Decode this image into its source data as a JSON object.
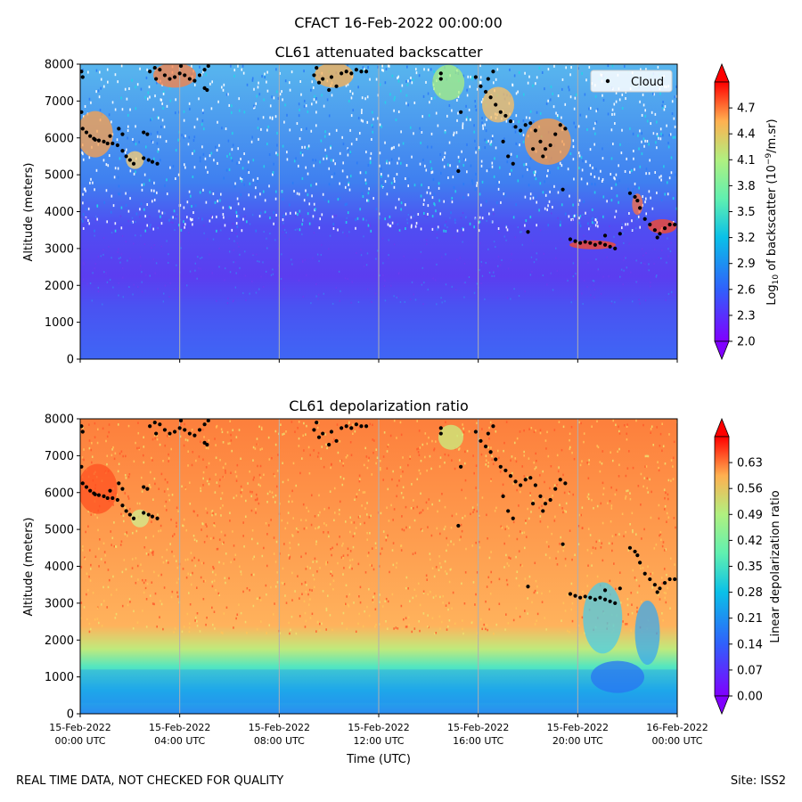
{
  "figure_title": "CFACT 16-Feb-2022 00:00:00",
  "footer": {
    "quality_note": "REAL TIME DATA, NOT CHECKED FOR QUALITY",
    "site": "Site: ISS2"
  },
  "chart_data": [
    {
      "type": "heatmap",
      "title": "CL61 attenuated backscatter",
      "xlabel": "Time (UTC)",
      "ylabel": "Altitude (meters)",
      "x_start": "2022-02-15 00:00 UTC",
      "x_end": "2022-02-16 00:00 UTC",
      "x_tick_labels": [
        [
          "15-Feb-2022",
          "00:00 UTC"
        ],
        [
          "15-Feb-2022",
          "04:00 UTC"
        ],
        [
          "15-Feb-2022",
          "08:00 UTC"
        ],
        [
          "15-Feb-2022",
          "12:00 UTC"
        ],
        [
          "15-Feb-2022",
          "16:00 UTC"
        ],
        [
          "15-Feb-2022",
          "20:00 UTC"
        ],
        [
          "16-Feb-2022",
          "00:00 UTC"
        ]
      ],
      "ylim": [
        0,
        8000
      ],
      "y_ticks": [
        "0",
        "1000",
        "2000",
        "3000",
        "4000",
        "5000",
        "6000",
        "7000",
        "8000"
      ],
      "colorbar": {
        "label_prefix": "Log",
        "label_sub": "10",
        "label_mid": " of backscatter (10",
        "label_sup": "−9",
        "label_suffix": "/m.sr)",
        "range": [
          2.0,
          5.0
        ],
        "ticks": [
          "2.0",
          "2.3",
          "2.6",
          "2.9",
          "3.2",
          "3.5",
          "3.8",
          "4.1",
          "4.4",
          "4.7"
        ],
        "colormap": "rainbow"
      },
      "legend": {
        "label": "Cloud",
        "position": "top-right"
      },
      "grid": "vertical"
    },
    {
      "type": "heatmap",
      "title": "CL61 depolarization ratio",
      "xlabel": "Time (UTC)",
      "ylabel": "Altitude (meters)",
      "ylim": [
        0,
        8000
      ],
      "y_ticks": [
        "0",
        "1000",
        "2000",
        "3000",
        "4000",
        "5000",
        "6000",
        "7000",
        "8000"
      ],
      "colorbar": {
        "label": "Linear depolarization ratio",
        "range": [
          0.0,
          0.7
        ],
        "ticks": [
          "0.00",
          "0.07",
          "0.14",
          "0.21",
          "0.28",
          "0.35",
          "0.42",
          "0.49",
          "0.56",
          "0.63"
        ],
        "colormap": "rainbow"
      },
      "grid": "vertical"
    }
  ],
  "cloud_points": [
    {
      "t": 0.05,
      "alt": 7800
    },
    {
      "t": 0.1,
      "alt": 7650
    },
    {
      "t": 0.05,
      "alt": 6700
    },
    {
      "t": 0.1,
      "alt": 6250
    },
    {
      "t": 0.25,
      "alt": 6150
    },
    {
      "t": 0.4,
      "alt": 6050
    },
    {
      "t": 0.55,
      "alt": 5980
    },
    {
      "t": 0.75,
      "alt": 5930
    },
    {
      "t": 0.95,
      "alt": 5900
    },
    {
      "t": 1.1,
      "alt": 5850
    },
    {
      "t": 1.3,
      "alt": 5850
    },
    {
      "t": 1.5,
      "alt": 5800
    },
    {
      "t": 1.7,
      "alt": 5650
    },
    {
      "t": 1.85,
      "alt": 5500
    },
    {
      "t": 2.0,
      "alt": 5400
    },
    {
      "t": 2.15,
      "alt": 5300
    },
    {
      "t": 1.7,
      "alt": 6100
    },
    {
      "t": 1.55,
      "alt": 6250
    },
    {
      "t": 2.55,
      "alt": 5450
    },
    {
      "t": 2.75,
      "alt": 5400
    },
    {
      "t": 2.9,
      "alt": 5350
    },
    {
      "t": 3.1,
      "alt": 5300
    },
    {
      "t": 2.7,
      "alt": 6100
    },
    {
      "t": 2.55,
      "alt": 6150
    },
    {
      "t": 1.2,
      "alt": 6050
    },
    {
      "t": 0.6,
      "alt": 5950
    },
    {
      "t": 2.8,
      "alt": 7800
    },
    {
      "t": 3.0,
      "alt": 7900
    },
    {
      "t": 3.2,
      "alt": 7850
    },
    {
      "t": 3.4,
      "alt": 7700
    },
    {
      "t": 3.6,
      "alt": 7600
    },
    {
      "t": 3.8,
      "alt": 7650
    },
    {
      "t": 4.0,
      "alt": 7750
    },
    {
      "t": 4.2,
      "alt": 7700
    },
    {
      "t": 4.4,
      "alt": 7600
    },
    {
      "t": 4.6,
      "alt": 7550
    },
    {
      "t": 4.8,
      "alt": 7700
    },
    {
      "t": 5.0,
      "alt": 7850
    },
    {
      "t": 5.15,
      "alt": 7950
    },
    {
      "t": 3.05,
      "alt": 7600
    },
    {
      "t": 4.05,
      "alt": 7950
    },
    {
      "t": 5.0,
      "alt": 7350
    },
    {
      "t": 5.1,
      "alt": 7300
    },
    {
      "t": 9.4,
      "alt": 7700
    },
    {
      "t": 9.6,
      "alt": 7500
    },
    {
      "t": 9.75,
      "alt": 7600
    },
    {
      "t": 10.1,
      "alt": 7650
    },
    {
      "t": 10.3,
      "alt": 7400
    },
    {
      "t": 10.5,
      "alt": 7750
    },
    {
      "t": 10.7,
      "alt": 7800
    },
    {
      "t": 10.9,
      "alt": 7750
    },
    {
      "t": 11.1,
      "alt": 7850
    },
    {
      "t": 11.3,
      "alt": 7800
    },
    {
      "t": 11.5,
      "alt": 7800
    },
    {
      "t": 9.5,
      "alt": 7900
    },
    {
      "t": 10.0,
      "alt": 7300
    },
    {
      "t": 14.5,
      "alt": 7750
    },
    {
      "t": 14.5,
      "alt": 7600
    },
    {
      "t": 15.9,
      "alt": 7650
    },
    {
      "t": 16.1,
      "alt": 7400
    },
    {
      "t": 16.3,
      "alt": 7250
    },
    {
      "t": 16.5,
      "alt": 7100
    },
    {
      "t": 16.7,
      "alt": 6900
    },
    {
      "t": 16.9,
      "alt": 6700
    },
    {
      "t": 17.1,
      "alt": 6600
    },
    {
      "t": 17.3,
      "alt": 6450
    },
    {
      "t": 17.5,
      "alt": 6300
    },
    {
      "t": 17.7,
      "alt": 6200
    },
    {
      "t": 17.9,
      "alt": 6350
    },
    {
      "t": 18.1,
      "alt": 6400
    },
    {
      "t": 18.3,
      "alt": 6200
    },
    {
      "t": 18.5,
      "alt": 5900
    },
    {
      "t": 18.7,
      "alt": 5700
    },
    {
      "t": 18.9,
      "alt": 5800
    },
    {
      "t": 19.1,
      "alt": 6100
    },
    {
      "t": 19.3,
      "alt": 6350
    },
    {
      "t": 19.5,
      "alt": 6250
    },
    {
      "t": 17.0,
      "alt": 5900
    },
    {
      "t": 17.2,
      "alt": 5500
    },
    {
      "t": 17.4,
      "alt": 5300
    },
    {
      "t": 15.3,
      "alt": 6700
    },
    {
      "t": 15.2,
      "alt": 5100
    },
    {
      "t": 16.4,
      "alt": 7600
    },
    {
      "t": 16.6,
      "alt": 7800
    },
    {
      "t": 18.2,
      "alt": 5700
    },
    {
      "t": 18.6,
      "alt": 5500
    },
    {
      "t": 19.4,
      "alt": 4600
    },
    {
      "t": 18.0,
      "alt": 3450
    },
    {
      "t": 19.7,
      "alt": 3250
    },
    {
      "t": 19.9,
      "alt": 3200
    },
    {
      "t": 20.1,
      "alt": 3150
    },
    {
      "t": 20.3,
      "alt": 3180
    },
    {
      "t": 20.5,
      "alt": 3150
    },
    {
      "t": 20.7,
      "alt": 3100
    },
    {
      "t": 20.9,
      "alt": 3150
    },
    {
      "t": 21.1,
      "alt": 3100
    },
    {
      "t": 21.3,
      "alt": 3050
    },
    {
      "t": 21.5,
      "alt": 3000
    },
    {
      "t": 21.1,
      "alt": 3350
    },
    {
      "t": 21.7,
      "alt": 3400
    },
    {
      "t": 22.1,
      "alt": 4500
    },
    {
      "t": 22.3,
      "alt": 4400
    },
    {
      "t": 22.5,
      "alt": 4100
    },
    {
      "t": 22.7,
      "alt": 3800
    },
    {
      "t": 22.9,
      "alt": 3650
    },
    {
      "t": 23.1,
      "alt": 3500
    },
    {
      "t": 23.3,
      "alt": 3400
    },
    {
      "t": 23.5,
      "alt": 3550
    },
    {
      "t": 23.7,
      "alt": 3650
    },
    {
      "t": 23.9,
      "alt": 3650
    },
    {
      "t": 22.4,
      "alt": 4300
    },
    {
      "t": 23.2,
      "alt": 3300
    }
  ]
}
